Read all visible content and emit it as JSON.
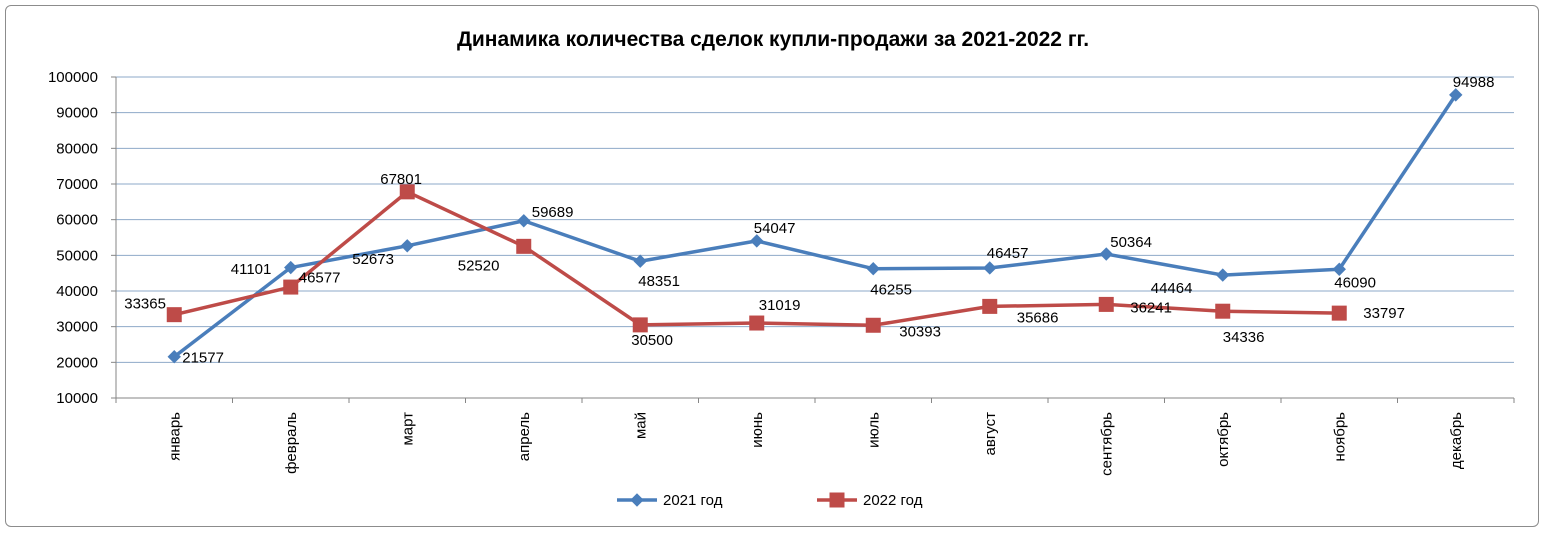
{
  "chart_data": {
    "type": "line",
    "title": "Динамика количества сделок купли-продажи за 2021-2022 гг.",
    "xlabel": "",
    "ylabel": "",
    "categories": [
      "январь",
      "февраль",
      "март",
      "апрель",
      "май",
      "июнь",
      "июль",
      "август",
      "сентябрь",
      "октябрь",
      "ноябрь",
      "декабрь"
    ],
    "ylim": [
      10000,
      100000
    ],
    "yticks": [
      10000,
      20000,
      30000,
      40000,
      50000,
      60000,
      70000,
      80000,
      90000,
      100000
    ],
    "ytick_labels": [
      "10000",
      "20000",
      "30000",
      "40000",
      "50000",
      "60000",
      "70000",
      "80000",
      "90000",
      "100000"
    ],
    "grid": true,
    "legend_position": "bottom",
    "series": [
      {
        "name": "2021 год",
        "color": "#4a7ebb",
        "marker": "diamond",
        "values": [
          21577,
          46577,
          52673,
          59689,
          48351,
          54047,
          46255,
          46457,
          50364,
          44464,
          46090,
          94988
        ],
        "labels": [
          "21577",
          "46577",
          "52673",
          "59689",
          "48351",
          "54047",
          "46255",
          "46457",
          "50364",
          "44464",
          "46090",
          "94988"
        ]
      },
      {
        "name": "2022 год",
        "color": "#be4b48",
        "marker": "square",
        "values": [
          33365,
          41101,
          67801,
          52520,
          30500,
          31019,
          30393,
          35686,
          36241,
          34336,
          33797,
          null
        ],
        "labels": [
          "33365",
          "41101",
          "67801",
          "52520",
          "30500",
          "31019",
          "30393",
          "35686",
          "36241",
          "34336",
          "33797",
          ""
        ]
      }
    ]
  }
}
